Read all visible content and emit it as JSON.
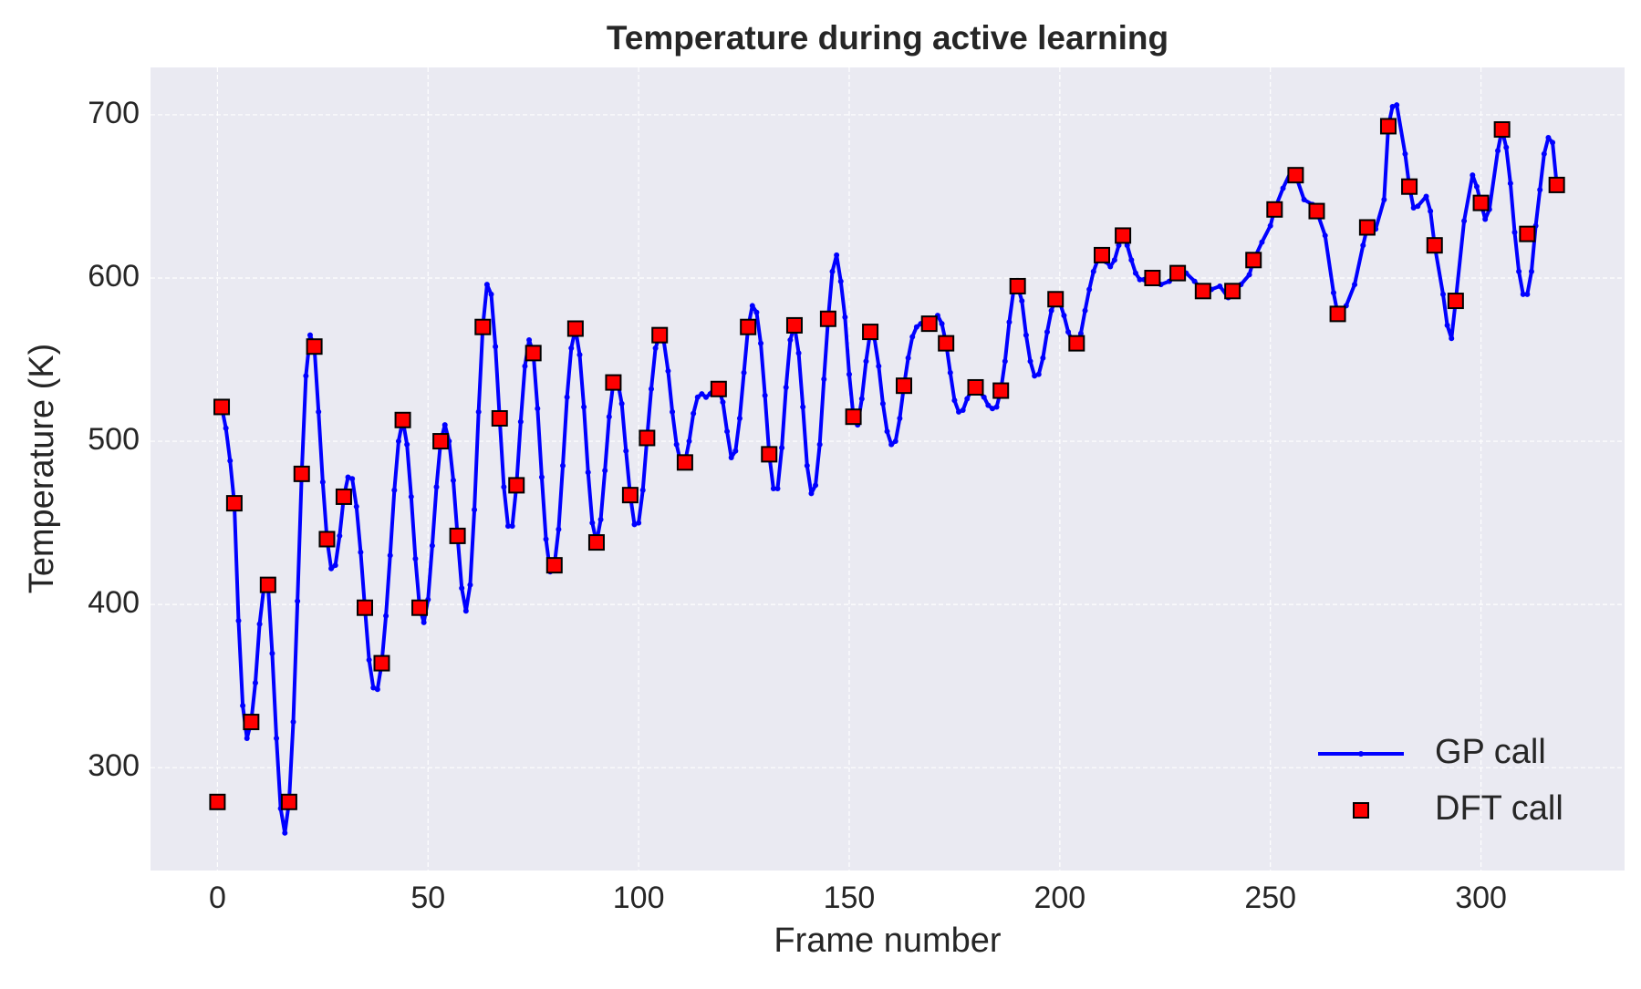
{
  "chart_data": {
    "type": "line",
    "title": "Temperature during active learning",
    "x_label": "Frame number",
    "y_label": "Temperature (K)",
    "xlim": [
      -15.9,
      334.1
    ],
    "ylim": [
      237,
      729
    ],
    "xticks": [
      0,
      50,
      100,
      150,
      200,
      250,
      300
    ],
    "yticks": [
      300,
      400,
      500,
      600,
      700
    ],
    "grid": true,
    "legend": "lower right",
    "series": [
      {
        "name": "GP call",
        "color": "#0000ff",
        "kind": "line",
        "x": [
          1,
          2,
          3,
          4,
          5,
          6,
          7,
          8,
          9,
          10,
          11,
          12,
          13,
          14,
          15,
          16,
          17,
          18,
          19,
          20,
          21,
          22,
          23,
          24,
          25,
          26,
          27,
          28,
          29,
          30,
          31,
          32,
          33,
          34,
          35,
          36,
          37,
          38,
          39,
          40,
          41,
          42,
          43,
          44,
          45,
          46,
          47,
          48,
          49,
          50,
          51,
          52,
          53,
          54,
          55,
          56,
          57,
          58,
          59,
          60,
          61,
          62,
          63,
          64,
          65,
          66,
          67,
          68,
          69,
          70,
          71,
          72,
          73,
          74,
          75,
          76,
          77,
          78,
          79,
          80,
          81,
          82,
          83,
          84,
          85,
          86,
          87,
          88,
          89,
          90,
          91,
          92,
          93,
          94,
          95,
          96,
          97,
          98,
          99,
          100,
          101,
          102,
          103,
          104,
          105,
          106,
          107,
          108,
          109,
          110,
          111,
          112,
          113,
          114,
          115,
          116,
          117,
          118,
          119,
          120,
          121,
          122,
          123,
          124,
          125,
          126,
          127,
          128,
          129,
          130,
          131,
          132,
          133,
          134,
          135,
          136,
          137,
          138,
          139,
          140,
          141,
          142,
          143,
          144,
          145,
          146,
          147,
          148,
          149,
          150,
          151,
          152,
          153,
          154,
          155,
          156,
          157,
          158,
          159,
          160,
          161,
          162,
          163,
          164,
          165,
          166,
          167,
          168,
          169,
          170,
          171,
          172,
          173,
          174,
          175,
          176,
          177,
          178,
          179,
          180,
          181,
          182,
          183,
          184,
          185,
          186,
          187,
          188,
          189,
          190,
          191,
          192,
          193,
          194,
          195,
          196,
          197,
          198,
          199,
          200,
          201,
          202,
          203,
          204,
          205,
          206,
          207,
          208,
          209,
          210,
          211,
          212,
          213,
          214,
          215,
          216,
          217,
          218,
          219,
          220,
          222,
          224,
          226,
          228,
          230,
          232,
          234,
          236,
          238,
          240,
          241,
          243,
          245,
          246,
          248,
          250,
          251,
          253,
          255,
          256,
          258,
          260,
          261,
          263,
          265,
          266,
          268,
          270,
          272,
          273,
          275,
          277,
          278,
          279,
          280,
          282,
          283,
          284,
          285,
          287,
          288,
          289,
          291,
          292,
          293,
          294,
          296,
          298,
          299,
          300,
          301,
          302,
          304,
          305,
          306,
          307,
          308,
          309,
          310,
          311,
          312,
          313,
          314,
          315,
          316,
          317,
          318
        ],
        "values": [
          521,
          508,
          488,
          462,
          390,
          338,
          318,
          328,
          352,
          388,
          410,
          412,
          370,
          318,
          275,
          260,
          279,
          328,
          402,
          480,
          540,
          565,
          558,
          518,
          475,
          440,
          422,
          424,
          442,
          466,
          478,
          477,
          460,
          432,
          398,
          366,
          349,
          348,
          364,
          393,
          430,
          470,
          500,
          513,
          498,
          466,
          428,
          398,
          389,
          403,
          436,
          472,
          500,
          510,
          500,
          476,
          442,
          410,
          396,
          412,
          458,
          518,
          570,
          596,
          590,
          558,
          514,
          472,
          448,
          448,
          473,
          512,
          546,
          562,
          554,
          520,
          478,
          440,
          420,
          424,
          446,
          485,
          527,
          557,
          569,
          553,
          521,
          481,
          450,
          438,
          452,
          482,
          515,
          536,
          537,
          523,
          494,
          467,
          449,
          450,
          470,
          502,
          532,
          557,
          565,
          561,
          543,
          518,
          498,
          487,
          487,
          500,
          517,
          527,
          529,
          527,
          529,
          533,
          532,
          524,
          506,
          490,
          494,
          514,
          542,
          570,
          583,
          579,
          560,
          528,
          492,
          471,
          471,
          496,
          533,
          562,
          571,
          554,
          521,
          485,
          468,
          473,
          498,
          538,
          575,
          604,
          614,
          598,
          576,
          541,
          515,
          510,
          526,
          549,
          567,
          563,
          546,
          523,
          506,
          498,
          500,
          514,
          534,
          551,
          564,
          570,
          572,
          570,
          572,
          575,
          577,
          572,
          560,
          542,
          525,
          518,
          519,
          526,
          531,
          533,
          530,
          527,
          522,
          520,
          521,
          531,
          549,
          573,
          592,
          595,
          586,
          565,
          549,
          540,
          541,
          551,
          567,
          580,
          587,
          585,
          577,
          567,
          561,
          560,
          566,
          580,
          593,
          604,
          611,
          614,
          610,
          607,
          611,
          620,
          626,
          620,
          611,
          603,
          599,
          599,
          600,
          596,
          598,
          603,
          603,
          598,
          592,
          593,
          595,
          588,
          592,
          596,
          602,
          611,
          622,
          632,
          642,
          655,
          666,
          663,
          648,
          645,
          641,
          626,
          591,
          578,
          583,
          596,
          620,
          631,
          630,
          648,
          693,
          705,
          706,
          676,
          656,
          643,
          644,
          650,
          641,
          620,
          590,
          571,
          563,
          586,
          635,
          663,
          656,
          646,
          636,
          642,
          678,
          691,
          680,
          658,
          628,
          604,
          590,
          590,
          604,
          632,
          654,
          676,
          686,
          683,
          657
        ]
      },
      {
        "name": "DFT call",
        "color": "#ff0000",
        "kind": "scatter",
        "x": [
          0,
          1,
          4,
          8,
          12,
          17,
          20,
          23,
          26,
          30,
          35,
          39,
          44,
          48,
          53,
          57,
          63,
          67,
          71,
          75,
          80,
          85,
          90,
          94,
          98,
          102,
          105,
          111,
          119,
          126,
          131,
          137,
          145,
          151,
          155,
          163,
          169,
          173,
          180,
          186,
          190,
          199,
          204,
          210,
          215,
          222,
          228,
          234,
          241,
          246,
          251,
          256,
          261,
          266,
          273,
          278,
          283,
          289,
          294,
          300,
          305,
          311,
          318
        ],
        "values": [
          279,
          521,
          462,
          328,
          412,
          279,
          480,
          558,
          440,
          466,
          398,
          364,
          513,
          398,
          500,
          442,
          570,
          514,
          473,
          554,
          424,
          569,
          438,
          536,
          467,
          502,
          565,
          487,
          532,
          570,
          492,
          571,
          575,
          515,
          567,
          534,
          572,
          560,
          533,
          531,
          595,
          587,
          560,
          614,
          626,
          600,
          603,
          592,
          592,
          611,
          642,
          663,
          641,
          578,
          631,
          693,
          656,
          620,
          586,
          646,
          691,
          627,
          657
        ]
      }
    ]
  }
}
